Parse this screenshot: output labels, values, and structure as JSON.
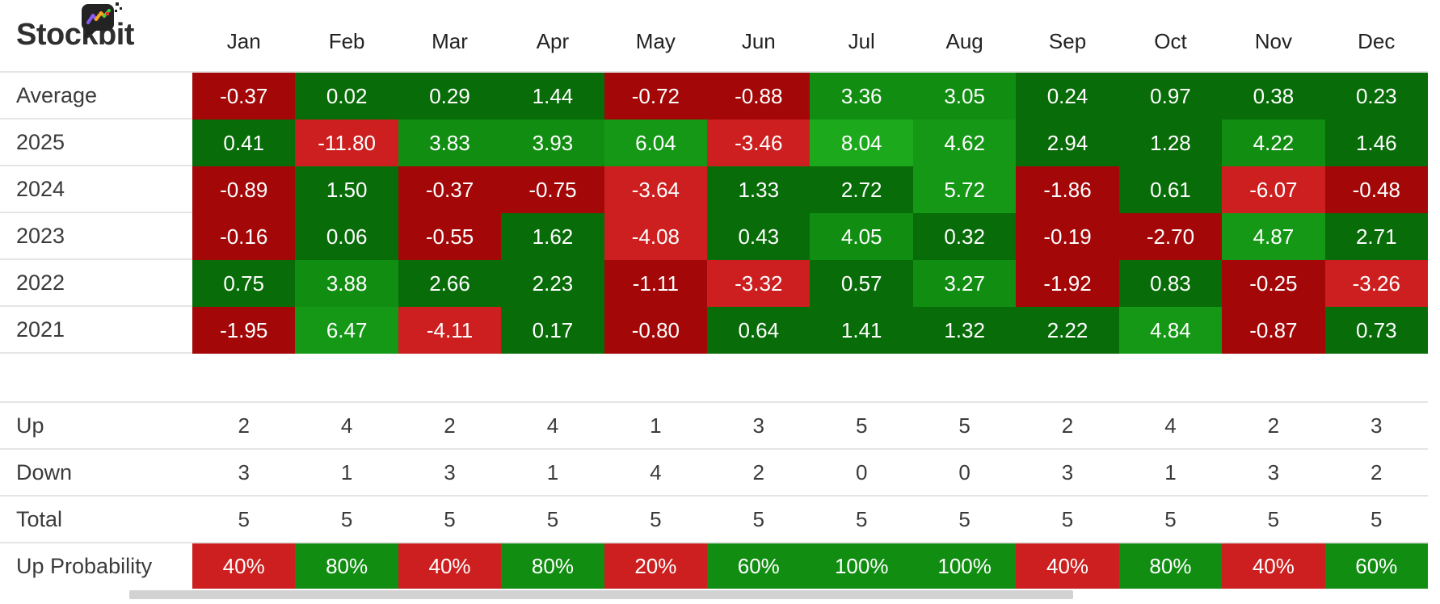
{
  "brand": {
    "logo_text": "Stockbit"
  },
  "chart_data": {
    "type": "heatmap",
    "columns": [
      "Jan",
      "Feb",
      "Mar",
      "Apr",
      "May",
      "Jun",
      "Jul",
      "Aug",
      "Sep",
      "Oct",
      "Nov",
      "Dec"
    ],
    "rows": [
      {
        "label": "Average",
        "values": [
          -0.37,
          0.02,
          0.29,
          1.44,
          -0.72,
          -0.88,
          3.36,
          3.05,
          0.24,
          0.97,
          0.38,
          0.23
        ]
      },
      {
        "label": "2025",
        "values": [
          0.41,
          -11.8,
          3.83,
          3.93,
          6.04,
          -3.46,
          8.04,
          4.62,
          2.94,
          1.28,
          4.22,
          1.46
        ]
      },
      {
        "label": "2024",
        "values": [
          -0.89,
          1.5,
          -0.37,
          -0.75,
          -3.64,
          1.33,
          2.72,
          5.72,
          -1.86,
          0.61,
          -6.07,
          -0.48
        ]
      },
      {
        "label": "2023",
        "values": [
          -0.16,
          0.06,
          -0.55,
          1.62,
          -4.08,
          0.43,
          4.05,
          0.32,
          -0.19,
          -2.7,
          4.87,
          2.71
        ]
      },
      {
        "label": "2022",
        "values": [
          0.75,
          3.88,
          2.66,
          2.23,
          -1.11,
          -3.32,
          0.57,
          3.27,
          -1.92,
          0.83,
          -0.25,
          -3.26
        ]
      },
      {
        "label": "2021",
        "values": [
          -1.95,
          6.47,
          -4.11,
          0.17,
          -0.8,
          0.64,
          1.41,
          1.32,
          2.22,
          4.84,
          -0.87,
          0.73
        ]
      }
    ],
    "stats": [
      {
        "label": "Up",
        "values": [
          2,
          4,
          2,
          4,
          1,
          3,
          5,
          5,
          2,
          4,
          2,
          3
        ]
      },
      {
        "label": "Down",
        "values": [
          3,
          1,
          3,
          1,
          4,
          2,
          0,
          0,
          3,
          1,
          3,
          2
        ]
      },
      {
        "label": "Total",
        "values": [
          5,
          5,
          5,
          5,
          5,
          5,
          5,
          5,
          5,
          5,
          5,
          5
        ]
      }
    ],
    "probability": {
      "label": "Up Probability",
      "unit": "%",
      "values": [
        40,
        80,
        40,
        80,
        20,
        60,
        100,
        100,
        40,
        80,
        40,
        60
      ]
    }
  },
  "colors": {
    "heat_positive": [
      {
        "min": 7,
        "hex": "#1caa1c"
      },
      {
        "min": 4.5,
        "hex": "#159815"
      },
      {
        "min": 3,
        "hex": "#118e11"
      },
      {
        "min": 0,
        "hex": "#086c08"
      }
    ],
    "heat_negative": [
      {
        "max": -3,
        "hex": "#cd1f1f"
      },
      {
        "max": 0,
        "hex": "#a30707"
      }
    ],
    "prob_threshold": 60,
    "prob_up": "#118e11",
    "prob_down": "#cd1f1f",
    "cell_text": "#ffffff",
    "label_text": "#3b3b3b",
    "border": "#e5e5e5",
    "scrollbar": "#d2d2d2"
  }
}
